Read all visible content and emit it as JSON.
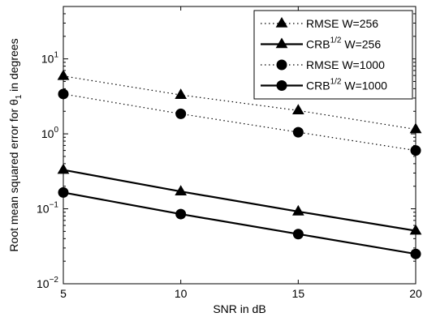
{
  "chart_data": {
    "type": "line",
    "xlabel": "SNR in dB",
    "ylabel_prefix": "Root mean squared error for θ",
    "ylabel_sub": "1",
    "ylabel_suffix": " in degrees",
    "y_scale": "log",
    "xlim": [
      5,
      20
    ],
    "ylim": [
      0.01,
      50
    ],
    "x_ticks": [
      5,
      10,
      15,
      20
    ],
    "y_ticks": [
      {
        "value": 0.01,
        "base": "10",
        "exp": "−2"
      },
      {
        "value": 0.1,
        "base": "10",
        "exp": "−1"
      },
      {
        "value": 1,
        "base": "10",
        "exp": "0"
      },
      {
        "value": 10,
        "base": "10",
        "exp": "1"
      }
    ],
    "grid": false,
    "legend_position": "top-right",
    "x": [
      5,
      10,
      15,
      20
    ],
    "series": [
      {
        "name": "RMSE W=256",
        "name_main": "RMSE W=256",
        "name_sup": "",
        "name_tail": "",
        "values": [
          5.9,
          3.3,
          2.05,
          1.15
        ],
        "line": "dotted",
        "marker": "triangle",
        "color": "#000000"
      },
      {
        "name": "CRB^1/2 W=256",
        "name_main": "CRB",
        "name_sup": "1/2",
        "name_tail": " W=256",
        "values": [
          0.33,
          0.17,
          0.092,
          0.051
        ],
        "line": "solid",
        "marker": "triangle",
        "color": "#000000"
      },
      {
        "name": "RMSE W=1000",
        "name_main": "RMSE W=1000",
        "name_sup": "",
        "name_tail": "",
        "values": [
          3.4,
          1.85,
          1.05,
          0.6
        ],
        "line": "dotted",
        "marker": "circle",
        "color": "#000000"
      },
      {
        "name": "CRB^1/2 W=1000",
        "name_main": "CRB",
        "name_sup": "1/2",
        "name_tail": " W=1000",
        "values": [
          0.165,
          0.085,
          0.046,
          0.025
        ],
        "line": "solid",
        "marker": "circle",
        "color": "#000000"
      }
    ]
  }
}
